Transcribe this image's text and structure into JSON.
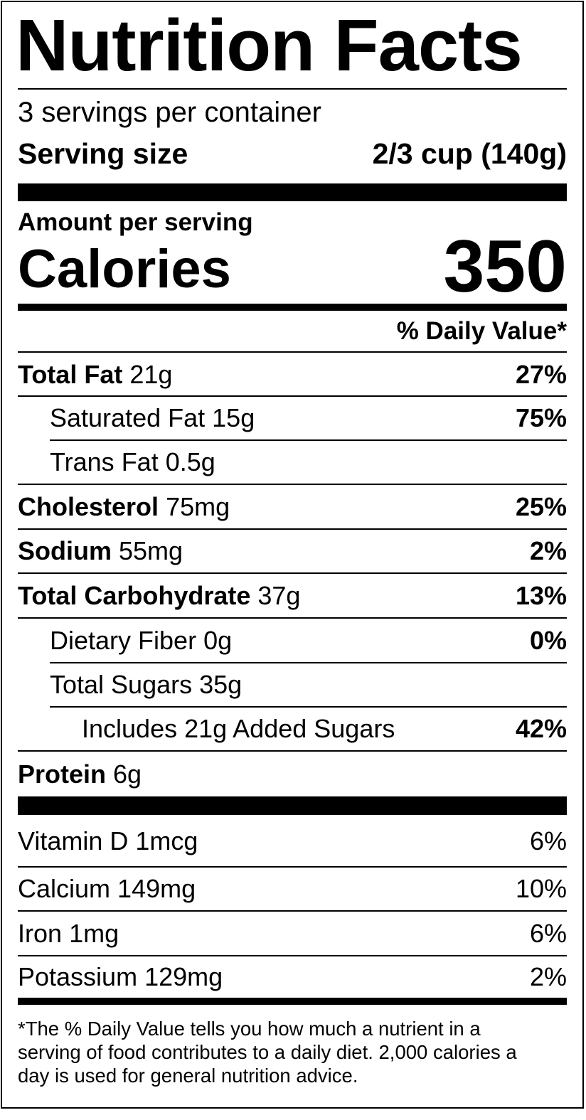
{
  "title": "Nutrition Facts",
  "servings": "3 servings per container",
  "serving_size": {
    "label": "Serving size",
    "value": "2/3 cup (140g)"
  },
  "amount_per_serving": "Amount per serving",
  "calories": {
    "label": "Calories",
    "value": 350
  },
  "daily_value_header": "% Daily Value*",
  "nutrients": [
    {
      "name": "Total Fat",
      "amount": "21g",
      "dv": "27%"
    },
    {
      "name": "Saturated Fat",
      "amount": "15g",
      "dv": "75%"
    },
    {
      "name": "Trans Fat",
      "amount": "0.5g"
    },
    {
      "name": "Cholesterol",
      "amount": "75mg",
      "dv": "25%"
    },
    {
      "name": "Sodium",
      "amount": "55mg",
      "dv": "2%"
    },
    {
      "name": "Total Carbohydrate",
      "amount": "37g",
      "dv": "13%"
    },
    {
      "name": "Dietary Fiber",
      "amount": "0g",
      "dv": "0%"
    },
    {
      "name": "Total Sugars",
      "amount": "35g"
    },
    {
      "name": "Includes 21g Added Sugars",
      "dv": "42%"
    },
    {
      "name": "Protein",
      "amount": "6g"
    }
  ],
  "vitamins": [
    {
      "name": "Vitamin D",
      "amount": "1mcg",
      "dv": "6%"
    },
    {
      "name": "Calcium",
      "amount": "149mg",
      "dv": "10%"
    },
    {
      "name": "Iron",
      "amount": "1mg",
      "dv": "6%"
    },
    {
      "name": "Potassium",
      "amount": "129mg",
      "dv": "2%"
    }
  ],
  "footnote": [
    "*The % Daily Value tells you how much a nutrient in a",
    "serving of food contributes to a daily diet. 2,000 calories a",
    "day is used for general nutrition advice."
  ]
}
